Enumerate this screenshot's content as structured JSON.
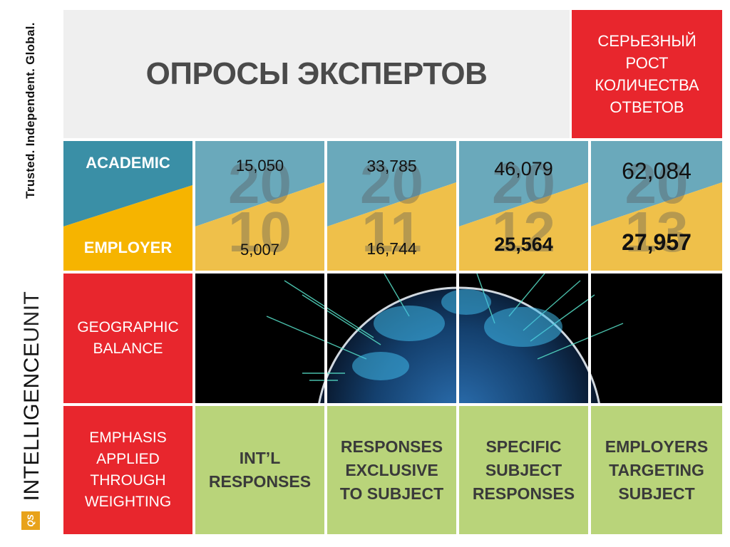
{
  "sidebar": {
    "tagline": "Trusted. Independent. Global.",
    "brand_bold": "INTELLIGENCE",
    "brand_light": "UNIT",
    "logo_text": "QS"
  },
  "header": {
    "title": "ОПРОСЫ ЭКСПЕРТОВ",
    "callout": "СЕРЬЕЗНЫЙ\nРОСТ\nКОЛИЧЕСТВА\nОТВЕТОВ"
  },
  "rows": {
    "academic_label": "ACADEMIC",
    "employer_label": "EMPLOYER",
    "geographic_label": "GEOGRAPHIC\nBALANCE",
    "emphasis_label": "EMPHASIS\nAPPLIED\nTHROUGH\nWEIGHTING"
  },
  "years": [
    {
      "year_top": "20",
      "year_bottom": "10",
      "academic": "15,050",
      "employer": "5,007"
    },
    {
      "year_top": "20",
      "year_bottom": "11",
      "academic": "33,785",
      "employer": "16,744"
    },
    {
      "year_top": "20",
      "year_bottom": "12",
      "academic": "46,079",
      "employer": "25,564"
    },
    {
      "year_top": "20",
      "year_bottom": "13",
      "academic": "62,084",
      "employer": "27,957"
    }
  ],
  "emphasis": [
    "INT’L\nRESPONSES",
    "RESPONSES\nEXCLUSIVE\nTO SUBJECT",
    "SPECIFIC\nSUBJECT\nRESPONSES",
    "EMPLOYERS\nTARGETING\nSUBJECT"
  ],
  "colors": {
    "red": "#e8262d",
    "teal": "#3a8fa6",
    "teal_light": "#6aa9bb",
    "gold": "#f6b400",
    "gold_light": "#efc04a",
    "green": "#b9d47a"
  }
}
